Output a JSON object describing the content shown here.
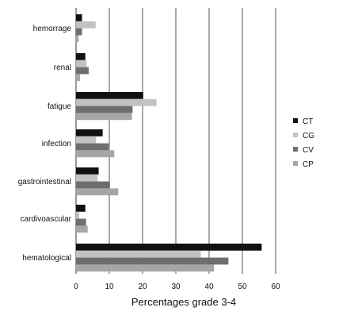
{
  "chart_data": {
    "type": "bar",
    "orientation": "horizontal",
    "title": "",
    "xlabel": "Percentages grade 3-4",
    "ylabel": "",
    "xlim": [
      0,
      60
    ],
    "xticks": [
      0,
      10,
      20,
      30,
      40,
      50,
      60
    ],
    "grid": "vertical",
    "legend_position": "right",
    "categories": [
      "hemorrage",
      "renal",
      "fatigue",
      "infection",
      "gastrointestinal",
      "cardivoascular",
      "hematological"
    ],
    "series": [
      {
        "name": "CT",
        "color": "#111111",
        "values": [
          1.8,
          2.8,
          20.2,
          8,
          6.8,
          2.8,
          55.8
        ]
      },
      {
        "name": "CG",
        "color": "#c2c2c2",
        "values": [
          5.9,
          3.2,
          24.2,
          6,
          6.5,
          1,
          37.5
        ]
      },
      {
        "name": "CV",
        "color": "#6e6e6e",
        "values": [
          1.8,
          3.8,
          17,
          9.8,
          10.2,
          3,
          45.8
        ]
      },
      {
        "name": "CP",
        "color": "#a6a6a6",
        "values": [
          0.8,
          1.2,
          16.8,
          11.5,
          12.7,
          3.5,
          41.5
        ]
      }
    ]
  }
}
